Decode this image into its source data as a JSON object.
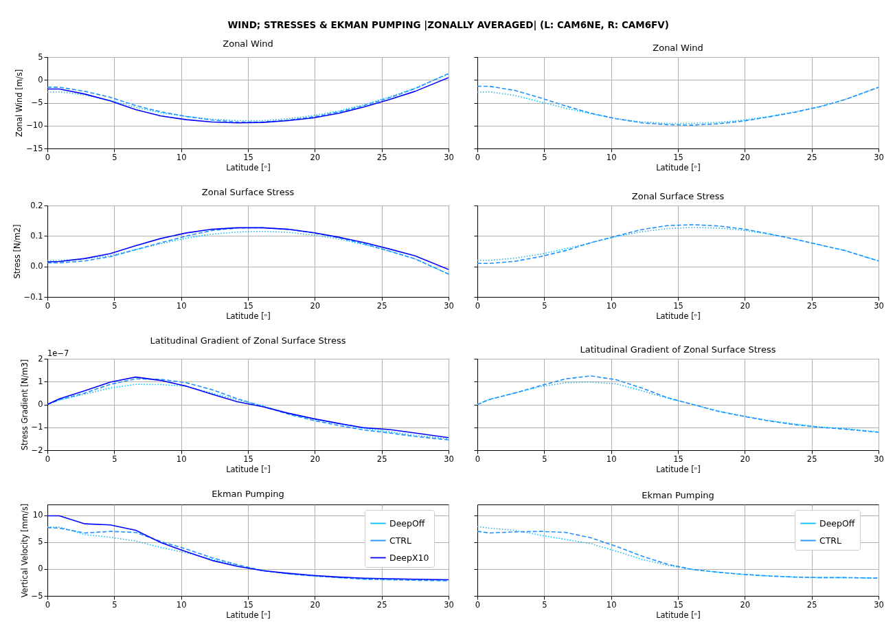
{
  "chart_data": [
    {
      "type": "line",
      "title": "Zonal Wind",
      "annotations": [
        "WIND; STRESSES & EKMAN PUMPING |ZONALLY AVERAGED| (L: CAM6NE, R: CAM6FV)"
      ],
      "xlabel": "Latitude [ᵒ]",
      "ylabel": "Zonal Wind [m/s]",
      "x": [
        0,
        0.9,
        2.8,
        4.7,
        6.6,
        8.5,
        10.4,
        12.3,
        14.2,
        16.1,
        18.0,
        19.9,
        21.8,
        23.7,
        25.6,
        27.5,
        30.0
      ],
      "xlim": [
        0,
        30
      ],
      "xticks": [
        0,
        5,
        10,
        15,
        20,
        25,
        30
      ],
      "ylim": [
        -15,
        5
      ],
      "yticks": [
        -15,
        -10,
        -5,
        0,
        5
      ],
      "grid": true,
      "legend": false,
      "series": [
        {
          "color": "#00bfff",
          "line_style": "dotted",
          "values": [
            -2.7,
            -2.6,
            -3.3,
            -4.5,
            -6.0,
            -7.2,
            -8.0,
            -8.6,
            -8.9,
            -8.9,
            -8.5,
            -7.8,
            -6.8,
            -5.4,
            -3.7,
            -1.8,
            1.3
          ]
        },
        {
          "color": "#1e90ff",
          "line_style": "dashed",
          "values": [
            -1.6,
            -1.6,
            -2.5,
            -3.8,
            -5.6,
            -7.0,
            -8.0,
            -8.8,
            -9.2,
            -9.2,
            -8.8,
            -8.1,
            -7.0,
            -5.6,
            -3.9,
            -1.9,
            1.4
          ]
        },
        {
          "color": "#0000ff",
          "line_style": "solid",
          "values": [
            -2.0,
            -2.0,
            -3.1,
            -4.6,
            -6.5,
            -7.9,
            -8.7,
            -9.2,
            -9.4,
            -9.3,
            -8.9,
            -8.3,
            -7.3,
            -5.9,
            -4.3,
            -2.5,
            0.5
          ]
        }
      ]
    },
    {
      "type": "line",
      "title": "Zonal Wind",
      "xlabel": "Latitude [ᵒ]",
      "x": [
        0,
        0.9,
        2.8,
        4.7,
        6.6,
        8.5,
        10.4,
        12.3,
        14.2,
        16.1,
        18.0,
        19.9,
        21.8,
        23.7,
        25.6,
        27.5,
        30.0
      ],
      "xlim": [
        0,
        30
      ],
      "xticks": [
        0,
        5,
        10,
        15,
        20,
        25,
        30
      ],
      "ylim": [
        -15,
        5
      ],
      "yticks": [
        -15,
        -10,
        -5,
        0,
        5
      ],
      "tick_labels": "x",
      "grid": true,
      "legend": false,
      "series": [
        {
          "color": "#00bfff",
          "line_style": "dotted",
          "values": [
            -2.7,
            -2.6,
            -3.4,
            -4.8,
            -6.2,
            -7.4,
            -8.5,
            -9.2,
            -9.5,
            -9.5,
            -9.3,
            -8.8,
            -8.0,
            -7.0,
            -5.8,
            -4.3,
            -1.7
          ]
        },
        {
          "color": "#1e90ff",
          "line_style": "dashed",
          "values": [
            -1.4,
            -1.4,
            -2.3,
            -3.9,
            -5.7,
            -7.3,
            -8.5,
            -9.4,
            -9.8,
            -9.9,
            -9.6,
            -9.0,
            -8.1,
            -7.1,
            -5.9,
            -4.3,
            -1.6
          ]
        }
      ]
    },
    {
      "type": "line",
      "title": "Zonal Surface Stress",
      "xlabel": "Latitude [ᵒ]",
      "ylabel": "Stress [N/m2]",
      "x": [
        0,
        0.9,
        2.8,
        4.7,
        6.6,
        8.5,
        10.4,
        12.3,
        14.2,
        16.1,
        18.0,
        19.9,
        21.8,
        23.7,
        25.6,
        27.5,
        30.0
      ],
      "xlim": [
        0,
        30
      ],
      "xticks": [
        0,
        5,
        10,
        15,
        20,
        25,
        30
      ],
      "ylim": [
        -0.1,
        0.2
      ],
      "yticks": [
        {
          "value": -0.1,
          "label": "−0.1"
        },
        {
          "value": 0,
          "label": "0.0"
        },
        {
          "value": 0.1,
          "label": "0.1"
        },
        {
          "value": 0.2,
          "label": "0.2"
        }
      ],
      "grid": true,
      "legend": false,
      "series": [
        {
          "color": "#00bfff",
          "line_style": "dotted",
          "values": [
            0.02,
            0.02,
            0.025,
            0.035,
            0.055,
            0.075,
            0.093,
            0.106,
            0.113,
            0.115,
            0.112,
            0.103,
            0.09,
            0.072,
            0.05,
            0.025,
            -0.025
          ]
        },
        {
          "color": "#1e90ff",
          "line_style": "dashed",
          "values": [
            0.012,
            0.012,
            0.018,
            0.032,
            0.055,
            0.078,
            0.1,
            0.118,
            0.126,
            0.127,
            0.122,
            0.11,
            0.094,
            0.074,
            0.05,
            0.025,
            -0.025
          ]
        },
        {
          "color": "#0000ff",
          "line_style": "solid",
          "values": [
            0.015,
            0.016,
            0.026,
            0.042,
            0.068,
            0.092,
            0.11,
            0.122,
            0.127,
            0.127,
            0.122,
            0.111,
            0.096,
            0.078,
            0.057,
            0.035,
            -0.01
          ]
        }
      ]
    },
    {
      "type": "line",
      "title": "Zonal Surface Stress",
      "xlabel": "Latitude [ᵒ]",
      "x": [
        0,
        0.9,
        2.8,
        4.7,
        6.6,
        8.5,
        10.4,
        12.3,
        14.2,
        16.1,
        18.0,
        19.9,
        21.8,
        23.7,
        25.6,
        27.5,
        30.0
      ],
      "xlim": [
        0,
        30
      ],
      "xticks": [
        0,
        5,
        10,
        15,
        20,
        25,
        30
      ],
      "ylim": [
        -0.1,
        0.2
      ],
      "yticks": [
        -0.1,
        0,
        0.1,
        0.2
      ],
      "tick_labels": "x",
      "grid": true,
      "legend": false,
      "series": [
        {
          "color": "#00bfff",
          "line_style": "dotted",
          "values": [
            0.02,
            0.02,
            0.027,
            0.04,
            0.058,
            0.078,
            0.098,
            0.114,
            0.124,
            0.128,
            0.126,
            0.119,
            0.106,
            0.09,
            0.071,
            0.052,
            0.018
          ]
        },
        {
          "color": "#1e90ff",
          "line_style": "dashed",
          "values": [
            0.01,
            0.01,
            0.017,
            0.032,
            0.052,
            0.078,
            0.1,
            0.121,
            0.134,
            0.137,
            0.133,
            0.123,
            0.107,
            0.09,
            0.071,
            0.052,
            0.018
          ]
        }
      ]
    },
    {
      "type": "line",
      "title": "Latitudinal Gradient of Zonal Surface Stress",
      "annotations": [
        "1e−7"
      ],
      "xlabel": "Latitude [ᵒ]",
      "ylabel": "Stress Gradient [N/m3]",
      "x": [
        0,
        0.9,
        2.8,
        4.7,
        6.6,
        8.5,
        10.4,
        12.3,
        14.2,
        16.1,
        18.0,
        19.9,
        21.8,
        23.7,
        25.6,
        27.5,
        30.0
      ],
      "xlim": [
        0,
        30
      ],
      "xticks": [
        0,
        5,
        10,
        15,
        20,
        25,
        30
      ],
      "ylim": [
        -2,
        2
      ],
      "yticks": [
        {
          "value": -2,
          "label": "−2"
        },
        {
          "value": -1,
          "label": "−1"
        },
        0,
        1,
        2
      ],
      "grid": true,
      "legend": false,
      "series": [
        {
          "color": "#00bfff",
          "line_style": "dotted",
          "values": [
            0,
            0.2,
            0.45,
            0.72,
            0.88,
            0.87,
            0.8,
            0.5,
            0.2,
            -0.05,
            -0.4,
            -0.65,
            -0.85,
            -1.05,
            -1.2,
            -1.35,
            -1.5
          ]
        },
        {
          "color": "#1e90ff",
          "line_style": "dashed",
          "values": [
            0,
            0.2,
            0.5,
            0.88,
            1.12,
            1.1,
            0.95,
            0.65,
            0.25,
            -0.08,
            -0.42,
            -0.7,
            -0.92,
            -1.12,
            -1.25,
            -1.4,
            -1.55
          ]
        },
        {
          "color": "#0000ff",
          "line_style": "solid",
          "values": [
            0,
            0.25,
            0.6,
            0.98,
            1.2,
            1.05,
            0.8,
            0.45,
            0.12,
            -0.1,
            -0.38,
            -0.62,
            -0.83,
            -1.02,
            -1.1,
            -1.25,
            -1.45
          ]
        }
      ]
    },
    {
      "type": "line",
      "title": "Latitudinal Gradient of Zonal Surface Stress",
      "xlabel": "Latitude [ᵒ]",
      "x": [
        0,
        0.9,
        2.8,
        4.7,
        6.6,
        8.5,
        10.4,
        12.3,
        14.2,
        16.1,
        18.0,
        19.9,
        21.8,
        23.7,
        25.6,
        27.5,
        30.0
      ],
      "xlim": [
        0,
        30
      ],
      "xticks": [
        0,
        5,
        10,
        15,
        20,
        25,
        30
      ],
      "ylim": [
        -2,
        2
      ],
      "yticks": [
        -2,
        -1,
        0,
        1,
        2
      ],
      "tick_labels": "x",
      "grid": true,
      "legend": false,
      "series": [
        {
          "color": "#00bfff",
          "line_style": "dotted",
          "values": [
            0,
            0.22,
            0.5,
            0.78,
            0.95,
            0.98,
            0.9,
            0.6,
            0.28,
            0,
            -0.28,
            -0.5,
            -0.7,
            -0.85,
            -0.98,
            -1.05,
            -1.2
          ]
        },
        {
          "color": "#1e90ff",
          "line_style": "dashed",
          "values": [
            0,
            0.22,
            0.5,
            0.82,
            1.12,
            1.25,
            1.08,
            0.72,
            0.3,
            0,
            -0.3,
            -0.52,
            -0.72,
            -0.88,
            -1.0,
            -1.08,
            -1.22
          ]
        }
      ]
    },
    {
      "type": "line",
      "title": "Ekman Pumping",
      "xlabel": "Latitude [ᵒ]",
      "ylabel": "Vertical Velocity [mm/s]",
      "x": [
        0,
        0.9,
        2.8,
        4.7,
        6.6,
        8.5,
        10.4,
        12.3,
        14.2,
        16.1,
        18.0,
        19.9,
        21.8,
        23.7,
        25.6,
        27.5,
        30.0
      ],
      "xlim": [
        0,
        30
      ],
      "xticks": [
        0,
        5,
        10,
        15,
        20,
        25,
        30
      ],
      "ylim": [
        -5,
        12
      ],
      "yticks": [
        -5,
        0,
        5,
        10
      ],
      "grid": true,
      "legend": "top right",
      "series": [
        {
          "name": "DeepOff",
          "color": "#00bfff",
          "line_style": "dotted",
          "values": [
            7.8,
            7.8,
            6.4,
            5.9,
            5.2,
            4.0,
            3.0,
            1.8,
            0.7,
            -0.3,
            -0.9,
            -1.3,
            -1.6,
            -1.9,
            -2.0,
            -2.0,
            -2.1
          ]
        },
        {
          "name": "CTRL",
          "color": "#1e90ff",
          "line_style": "dashed",
          "values": [
            7.7,
            7.6,
            6.7,
            7.0,
            6.8,
            5.1,
            3.7,
            2.1,
            0.8,
            -0.3,
            -0.9,
            -1.3,
            -1.6,
            -1.9,
            -2.0,
            -2.1,
            -2.2
          ]
        },
        {
          "name": "DeepX10",
          "color": "#0000ff",
          "line_style": "solid",
          "values": [
            9.9,
            9.9,
            8.4,
            8.2,
            7.2,
            4.9,
            3.2,
            1.6,
            0.5,
            -0.3,
            -0.8,
            -1.2,
            -1.5,
            -1.7,
            -1.8,
            -1.9,
            -2.0
          ]
        }
      ]
    },
    {
      "type": "line",
      "title": "Ekman Pumping",
      "xlabel": "Latitude [ᵒ]",
      "x": [
        0,
        0.9,
        2.8,
        4.7,
        6.6,
        8.5,
        10.4,
        12.3,
        14.2,
        16.1,
        18.0,
        19.9,
        21.8,
        23.7,
        25.6,
        27.5,
        30.0
      ],
      "xlim": [
        0,
        30
      ],
      "xticks": [
        0,
        5,
        10,
        15,
        20,
        25,
        30
      ],
      "ylim": [
        -5,
        12
      ],
      "yticks": [
        -5,
        0,
        5,
        10
      ],
      "tick_labels": "x",
      "grid": true,
      "legend": "top right",
      "series": [
        {
          "name": "DeepOff",
          "color": "#00bfff",
          "line_style": "dotted",
          "values": [
            7.9,
            7.6,
            7.2,
            6.3,
            5.5,
            4.7,
            3.3,
            1.8,
            0.7,
            -0.1,
            -0.6,
            -1.0,
            -1.3,
            -1.5,
            -1.6,
            -1.6,
            -1.7
          ]
        },
        {
          "name": "CTRL",
          "color": "#1e90ff",
          "line_style": "dashed",
          "values": [
            7.0,
            6.7,
            6.9,
            7.0,
            6.8,
            5.8,
            4.2,
            2.4,
            0.9,
            -0.1,
            -0.6,
            -1.0,
            -1.3,
            -1.5,
            -1.6,
            -1.6,
            -1.7
          ]
        }
      ]
    }
  ]
}
